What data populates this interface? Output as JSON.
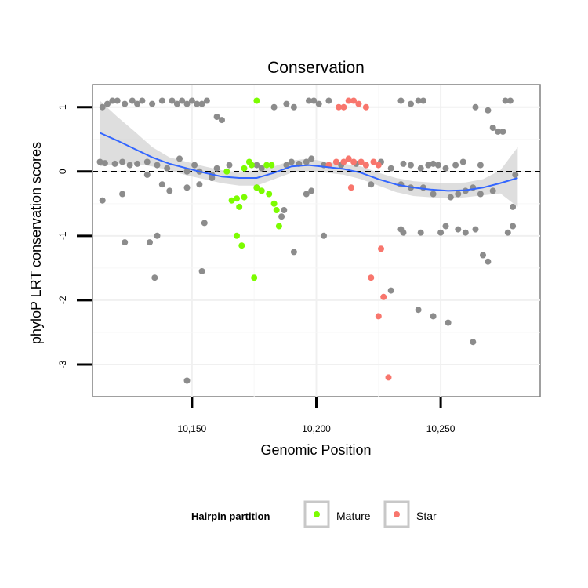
{
  "chart_data": {
    "type": "scatter",
    "title": "Conservation",
    "xlabel": "Genomic Position",
    "ylabel": "phyloP LRT conservation scores",
    "xlim": [
      10110,
      10290
    ],
    "ylim": [
      -3.5,
      1.35
    ],
    "x_ticks": [
      10150,
      10200,
      10250
    ],
    "x_tick_labels": [
      "10,150",
      "10,200",
      "10,250"
    ],
    "y_ticks": [
      -3,
      -2,
      -1,
      0,
      1
    ],
    "y_tick_labels": [
      "-3",
      "-2",
      "-1",
      "0",
      "1"
    ],
    "grid": true,
    "reference_line": {
      "y": 0,
      "style": "dashed"
    },
    "legend": {
      "title": "Hairpin partition",
      "position": "bottom",
      "entries": [
        {
          "label": "Mature",
          "color": "#7CFC00"
        },
        {
          "label": "Star",
          "color": "#F8766D"
        }
      ]
    },
    "colors": {
      "other": "#8c8c8c",
      "Mature": "#7CFC00",
      "Star": "#F8766D",
      "smooth": "#3366FF",
      "band": "#d3d3d3"
    },
    "series": [
      {
        "group": "other",
        "points": [
          [
            10114,
            1.0
          ],
          [
            10116,
            1.05
          ],
          [
            10118,
            1.1
          ],
          [
            10120,
            1.1
          ],
          [
            10123,
            1.05
          ],
          [
            10126,
            1.1
          ],
          [
            10128,
            1.05
          ],
          [
            10130,
            1.1
          ],
          [
            10134,
            1.05
          ],
          [
            10138,
            1.1
          ],
          [
            10142,
            1.1
          ],
          [
            10144,
            1.05
          ],
          [
            10146,
            1.1
          ],
          [
            10148,
            1.05
          ],
          [
            10150,
            1.1
          ],
          [
            10152,
            1.05
          ],
          [
            10154,
            1.05
          ],
          [
            10156,
            1.1
          ],
          [
            10183,
            1.0
          ],
          [
            10188,
            1.05
          ],
          [
            10191,
            1.0
          ],
          [
            10197,
            1.1
          ],
          [
            10199,
            1.1
          ],
          [
            10201,
            1.05
          ],
          [
            10205,
            1.1
          ],
          [
            10234,
            1.1
          ],
          [
            10238,
            1.05
          ],
          [
            10241,
            1.1
          ],
          [
            10243,
            1.1
          ],
          [
            10264,
            1.0
          ],
          [
            10269,
            0.95
          ],
          [
            10276,
            1.1
          ],
          [
            10278,
            1.1
          ],
          [
            10160,
            0.85
          ],
          [
            10162,
            0.8
          ],
          [
            10271,
            0.68
          ],
          [
            10273,
            0.62
          ],
          [
            10275,
            0.62
          ],
          [
            10113,
            0.15
          ],
          [
            10115,
            0.13
          ],
          [
            10119,
            0.12
          ],
          [
            10122,
            0.15
          ],
          [
            10125,
            0.1
          ],
          [
            10128,
            0.12
          ],
          [
            10132,
            0.15
          ],
          [
            10136,
            0.1
          ],
          [
            10140,
            0.05
          ],
          [
            10145,
            0.2
          ],
          [
            10148,
            0.0
          ],
          [
            10151,
            0.1
          ],
          [
            10153,
            0.0
          ],
          [
            10158,
            -0.05
          ],
          [
            10160,
            0.05
          ],
          [
            10165,
            0.1
          ],
          [
            10176,
            0.1
          ],
          [
            10178,
            0.05
          ],
          [
            10188,
            0.1
          ],
          [
            10190,
            0.15
          ],
          [
            10193,
            0.12
          ],
          [
            10196,
            0.15
          ],
          [
            10198,
            0.2
          ],
          [
            10203,
            0.1
          ],
          [
            10210,
            0.1
          ],
          [
            10216,
            0.12
          ],
          [
            10220,
            0.1
          ],
          [
            10226,
            0.15
          ],
          [
            10230,
            0.05
          ],
          [
            10235,
            0.12
          ],
          [
            10238,
            0.1
          ],
          [
            10242,
            0.05
          ],
          [
            10245,
            0.1
          ],
          [
            10247,
            0.12
          ],
          [
            10249,
            0.1
          ],
          [
            10252,
            0.05
          ],
          [
            10256,
            0.1
          ],
          [
            10259,
            0.15
          ],
          [
            10266,
            0.1
          ],
          [
            10280,
            -0.05
          ],
          [
            10122,
            -0.35
          ],
          [
            10132,
            -0.05
          ],
          [
            10138,
            -0.2
          ],
          [
            10141,
            -0.3
          ],
          [
            10148,
            -0.25
          ],
          [
            10153,
            -0.2
          ],
          [
            10158,
            -0.1
          ],
          [
            10176,
            -0.25
          ],
          [
            10178,
            -0.3
          ],
          [
            10187,
            -0.6
          ],
          [
            10196,
            -0.35
          ],
          [
            10198,
            -0.3
          ],
          [
            10222,
            -0.2
          ],
          [
            10234,
            -0.2
          ],
          [
            10238,
            -0.25
          ],
          [
            10243,
            -0.25
          ],
          [
            10247,
            -0.35
          ],
          [
            10254,
            -0.4
          ],
          [
            10257,
            -0.35
          ],
          [
            10260,
            -0.3
          ],
          [
            10263,
            -0.25
          ],
          [
            10266,
            -0.35
          ],
          [
            10271,
            -0.3
          ],
          [
            10279,
            -0.55
          ],
          [
            10114,
            -0.45
          ],
          [
            10123,
            -1.1
          ],
          [
            10133,
            -1.1
          ],
          [
            10136,
            -1.0
          ],
          [
            10155,
            -0.8
          ],
          [
            10186,
            -0.7
          ],
          [
            10191,
            -1.25
          ],
          [
            10203,
            -1.0
          ],
          [
            10234,
            -0.9
          ],
          [
            10235,
            -0.95
          ],
          [
            10242,
            -0.95
          ],
          [
            10250,
            -0.95
          ],
          [
            10252,
            -0.85
          ],
          [
            10257,
            -0.9
          ],
          [
            10260,
            -0.95
          ],
          [
            10264,
            -0.9
          ],
          [
            10267,
            -1.3
          ],
          [
            10269,
            -1.4
          ],
          [
            10277,
            -0.95
          ],
          [
            10279,
            -0.85
          ],
          [
            10135,
            -1.65
          ],
          [
            10154,
            -1.55
          ],
          [
            10230,
            -1.85
          ],
          [
            10241,
            -2.15
          ],
          [
            10247,
            -2.25
          ],
          [
            10253,
            -2.35
          ],
          [
            10263,
            -2.65
          ],
          [
            10148,
            -3.25
          ]
        ]
      },
      {
        "group": "Mature",
        "points": [
          [
            10176,
            1.1
          ],
          [
            10164,
            0.0
          ],
          [
            10171,
            0.05
          ],
          [
            10173,
            0.15
          ],
          [
            10174,
            0.1
          ],
          [
            10180,
            0.1
          ],
          [
            10182,
            0.1
          ],
          [
            10176,
            -0.25
          ],
          [
            10178,
            -0.3
          ],
          [
            10181,
            -0.35
          ],
          [
            10166,
            -0.45
          ],
          [
            10168,
            -0.42
          ],
          [
            10169,
            -0.55
          ],
          [
            10171,
            -0.4
          ],
          [
            10183,
            -0.5
          ],
          [
            10184,
            -0.6
          ],
          [
            10185,
            -0.85
          ],
          [
            10168,
            -1.0
          ],
          [
            10170,
            -1.15
          ],
          [
            10175,
            -1.65
          ]
        ]
      },
      {
        "group": "Star",
        "points": [
          [
            10209,
            1.0
          ],
          [
            10211,
            1.0
          ],
          [
            10213,
            1.1
          ],
          [
            10215,
            1.1
          ],
          [
            10217,
            1.05
          ],
          [
            10220,
            1.0
          ],
          [
            10205,
            0.1
          ],
          [
            10208,
            0.15
          ],
          [
            10211,
            0.15
          ],
          [
            10213,
            0.2
          ],
          [
            10215,
            0.15
          ],
          [
            10218,
            0.15
          ],
          [
            10220,
            0.1
          ],
          [
            10223,
            0.15
          ],
          [
            10225,
            0.1
          ],
          [
            10214,
            -0.25
          ],
          [
            10226,
            -1.2
          ],
          [
            10222,
            -1.65
          ],
          [
            10227,
            -1.95
          ],
          [
            10225,
            -2.25
          ],
          [
            10229,
            -3.2
          ]
        ]
      }
    ],
    "smooth": {
      "x": [
        10113,
        10120,
        10127,
        10134,
        10141,
        10148,
        10155,
        10162,
        10169,
        10176,
        10183,
        10190,
        10197,
        10204,
        10211,
        10218,
        10225,
        10232,
        10239,
        10246,
        10253,
        10260,
        10267,
        10274,
        10281
      ],
      "y": [
        0.6,
        0.48,
        0.35,
        0.22,
        0.12,
        0.05,
        -0.02,
        -0.08,
        -0.1,
        -0.1,
        -0.02,
        0.08,
        0.1,
        0.07,
        0.04,
        -0.02,
        -0.12,
        -0.2,
        -0.25,
        -0.28,
        -0.3,
        -0.29,
        -0.25,
        -0.18,
        -0.1
      ],
      "lo": [
        0.08,
        0.12,
        0.12,
        0.08,
        0.02,
        -0.06,
        -0.12,
        -0.18,
        -0.22,
        -0.22,
        -0.12,
        -0.02,
        0.0,
        -0.02,
        -0.05,
        -0.12,
        -0.22,
        -0.32,
        -0.38,
        -0.4,
        -0.42,
        -0.4,
        -0.37,
        -0.34,
        -0.55
      ],
      "hi": [
        1.1,
        0.85,
        0.62,
        0.38,
        0.22,
        0.15,
        0.08,
        0.02,
        -0.02,
        0.02,
        0.08,
        0.17,
        0.2,
        0.15,
        0.12,
        0.08,
        -0.02,
        -0.1,
        -0.15,
        -0.17,
        -0.18,
        -0.17,
        -0.12,
        0.02,
        0.38
      ]
    }
  }
}
